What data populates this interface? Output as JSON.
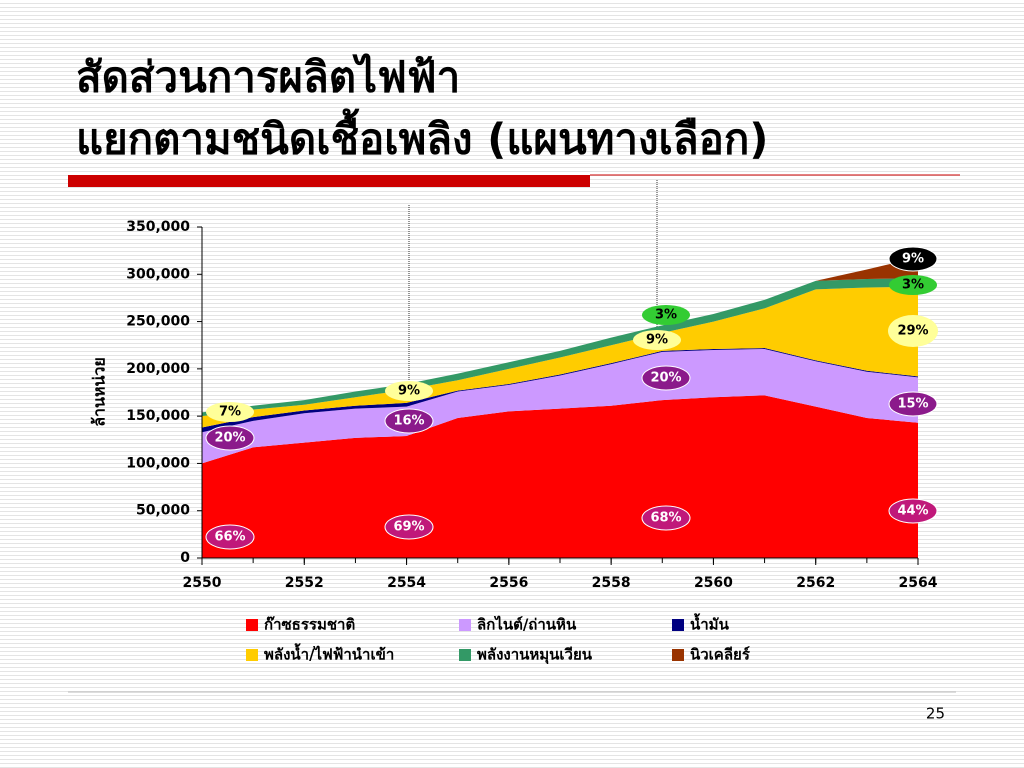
{
  "slide": {
    "title_lines": [
      "สัดส่วนการผลิตไฟฟ้า",
      "แยกตามชนิดเชื้อเพลิง (แผนทางเลือก)"
    ],
    "page_number": "25"
  },
  "chart_data": {
    "type": "stacked_area",
    "y_label": "ล้านหน่วย",
    "x": [
      2550,
      2551,
      2552,
      2553,
      2554,
      2555,
      2556,
      2557,
      2558,
      2559,
      2560,
      2561,
      2562,
      2563,
      2564
    ],
    "xlim": [
      2550,
      2564
    ],
    "xticks": [
      2550,
      2552,
      2554,
      2556,
      2558,
      2560,
      2562,
      2564
    ],
    "ylim": [
      0,
      350000
    ],
    "yticks": [
      0,
      {
        "value": 50000,
        "label": "50,000"
      },
      {
        "value": 100000,
        "label": "100,000"
      },
      {
        "value": 150000,
        "label": "150,000"
      },
      {
        "value": 200000,
        "label": "200,000"
      },
      {
        "value": 250000,
        "label": "250,000"
      },
      {
        "value": 300000,
        "label": "300,000"
      },
      {
        "value": 350000,
        "label": "350,000"
      }
    ],
    "series": [
      {
        "name": "ก๊าซธรรมชาติ",
        "color": "#ff0000",
        "values": [
          100000,
          117000,
          122000,
          127000,
          129000,
          148000,
          155000,
          158000,
          161000,
          167000,
          170000,
          172000,
          160000,
          148000,
          143000
        ]
      },
      {
        "name": "ลิกไนต์/ถ่านหิน",
        "color": "#cc99ff",
        "values": [
          33000,
          28000,
          31000,
          31000,
          31000,
          28000,
          28000,
          35000,
          44000,
          51000,
          50000,
          49000,
          48000,
          49000,
          48000
        ]
      },
      {
        "name": "น้ำมัน",
        "color": "#000080",
        "values": [
          5000,
          4000,
          3000,
          3000,
          4000,
          1000,
          1000,
          1000,
          1000,
          1000,
          1000,
          1000,
          1000,
          1000,
          1000
        ]
      },
      {
        "name": "พลังน้ำ/ไฟฟ้านำเข้า",
        "color": "#ffcc00",
        "values": [
          12000,
          8000,
          6000,
          9000,
          14000,
          11000,
          16000,
          18000,
          19000,
          19000,
          29000,
          42000,
          75000,
          88000,
          95000
        ]
      },
      {
        "name": "พลังงานหมุนเวียน",
        "color": "#339966",
        "values": [
          4000,
          4000,
          5000,
          6000,
          6000,
          7000,
          7000,
          7000,
          8000,
          8000,
          8000,
          9000,
          9000,
          9000,
          9000
        ]
      },
      {
        "name": "นิวเคลียร์",
        "color": "#993300",
        "values": [
          0,
          0,
          0,
          0,
          0,
          0,
          0,
          0,
          0,
          0,
          0,
          0,
          0,
          10000,
          22000
        ]
      }
    ],
    "annotations": [
      {
        "text": "66%",
        "color": "#c0187a"
      },
      {
        "text": "20%",
        "color": "#8b1a8b"
      },
      {
        "text": "7%",
        "color": "#ffff99"
      },
      {
        "text": "69%",
        "color": "#c0187a"
      },
      {
        "text": "16%",
        "color": "#8b1a8b"
      },
      {
        "text": "9%",
        "color": "#ffff99"
      },
      {
        "text": "68%",
        "color": "#c0187a"
      },
      {
        "text": "20%",
        "color": "#8b1a8b"
      },
      {
        "text": "9%",
        "color": "#ffff99"
      },
      {
        "text": "3%",
        "color": "#33cc33"
      },
      {
        "text": "44%",
        "color": "#c0187a"
      },
      {
        "text": "15%",
        "color": "#8b1a8b"
      },
      {
        "text": "29%",
        "color": "#ffff99"
      },
      {
        "text": "3%",
        "color": "#33cc33"
      },
      {
        "text": "9%",
        "color": "#000000"
      }
    ]
  }
}
